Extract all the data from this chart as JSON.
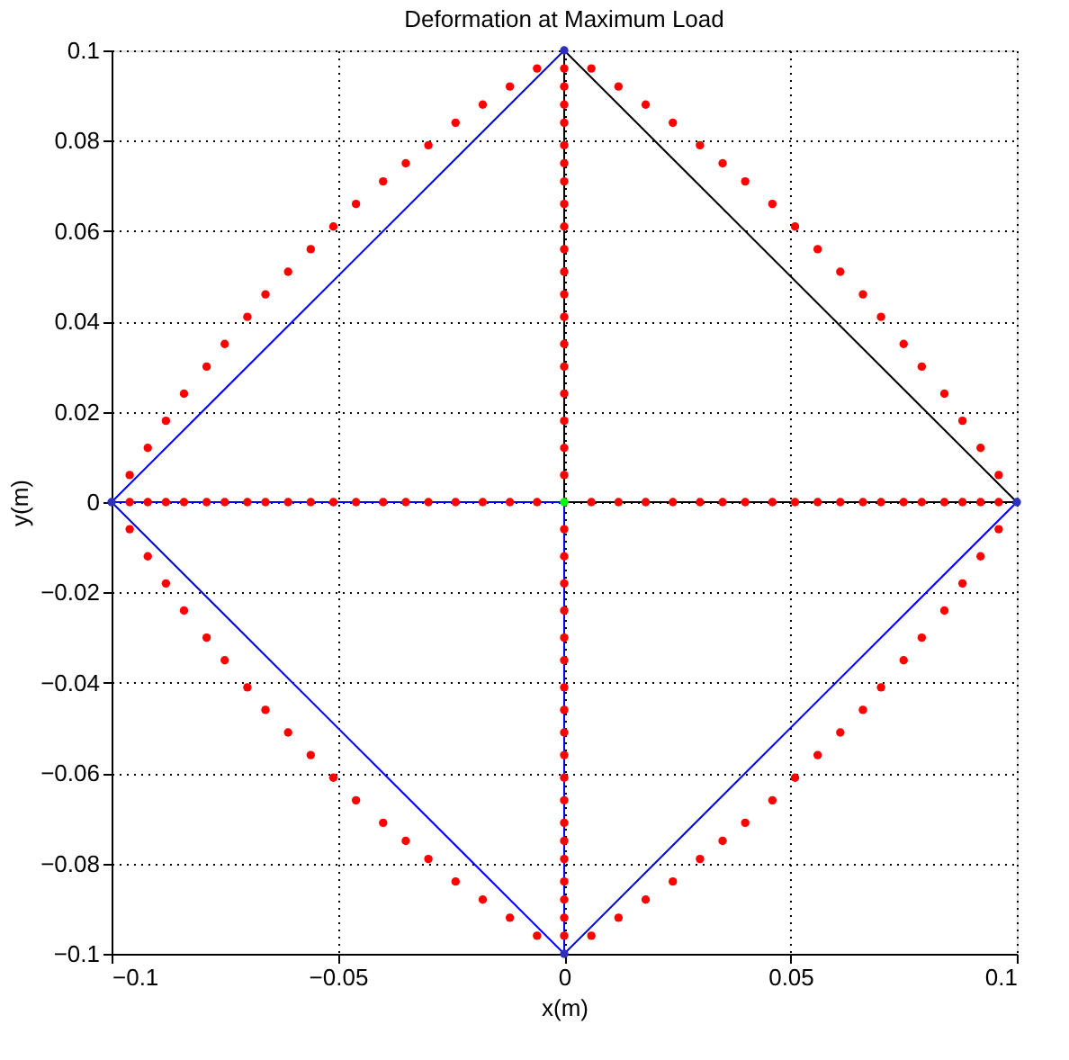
{
  "chart_data": {
    "type": "scatter",
    "title": "Deformation at Maximum Load",
    "xlabel": "x(m)",
    "ylabel": "y(m)",
    "xlim": [
      -0.1,
      0.1
    ],
    "ylim": [
      -0.1,
      0.1
    ],
    "xticks": [
      -0.1,
      -0.05,
      0,
      0.05,
      0.1
    ],
    "yticks": [
      -0.1,
      -0.08,
      -0.06,
      -0.04,
      -0.02,
      0,
      0.02,
      0.04,
      0.06,
      0.08,
      0.1
    ],
    "grid": true,
    "series": [
      {
        "type": "line",
        "color": "#0000ff",
        "x": [
          0.1,
          0,
          -0.1,
          0
        ],
        "values": [
          0,
          -0.1,
          0,
          0.1
        ]
      },
      {
        "type": "line",
        "color": "#000000",
        "x": [
          0,
          0.1
        ],
        "values": [
          0.1,
          0
        ]
      },
      {
        "type": "line",
        "color": "#0000ff",
        "x": [
          -0.1,
          0
        ],
        "values": [
          0,
          0
        ]
      },
      {
        "type": "line",
        "color": "#000000",
        "x": [
          0,
          0.1
        ],
        "values": [
          0,
          0
        ]
      },
      {
        "type": "line",
        "color": "#000000",
        "x": [
          0,
          0
        ],
        "values": [
          0,
          0.1
        ]
      },
      {
        "type": "line",
        "color": "#0000ff",
        "x": [
          0,
          0
        ],
        "values": [
          0,
          -0.1
        ]
      },
      {
        "color": "#ff0000",
        "x": [
          -0.096,
          -0.092,
          -0.088,
          -0.084,
          -0.079,
          -0.075,
          -0.07,
          -0.066,
          -0.061,
          -0.056,
          -0.051,
          -0.046,
          -0.04,
          -0.035,
          -0.03,
          -0.024,
          -0.018,
          -0.012,
          -0.006
        ],
        "values": [
          0.006,
          0.012,
          0.018,
          0.024,
          0.03,
          0.035,
          0.041,
          0.046,
          0.051,
          0.056,
          0.061,
          0.066,
          0.071,
          0.075,
          0.079,
          0.084,
          0.088,
          0.092,
          0.096
        ]
      },
      {
        "color": "#ff0000",
        "x": [
          0.096,
          0.092,
          0.088,
          0.084,
          0.079,
          0.075,
          0.07,
          0.066,
          0.061,
          0.056,
          0.051,
          0.046,
          0.04,
          0.035,
          0.03,
          0.024,
          0.018,
          0.012,
          0.006
        ],
        "values": [
          0.006,
          0.012,
          0.018,
          0.024,
          0.03,
          0.035,
          0.041,
          0.046,
          0.051,
          0.056,
          0.061,
          0.066,
          0.071,
          0.075,
          0.079,
          0.084,
          0.088,
          0.092,
          0.096
        ]
      },
      {
        "color": "#ff0000",
        "x": [
          -0.096,
          -0.092,
          -0.088,
          -0.084,
          -0.079,
          -0.075,
          -0.07,
          -0.066,
          -0.061,
          -0.056,
          -0.051,
          -0.046,
          -0.04,
          -0.035,
          -0.03,
          -0.024,
          -0.018,
          -0.012,
          -0.006
        ],
        "values": [
          -0.006,
          -0.012,
          -0.018,
          -0.024,
          -0.03,
          -0.035,
          -0.041,
          -0.046,
          -0.051,
          -0.056,
          -0.061,
          -0.066,
          -0.071,
          -0.075,
          -0.079,
          -0.084,
          -0.088,
          -0.092,
          -0.096
        ]
      },
      {
        "color": "#ff0000",
        "x": [
          0.096,
          0.092,
          0.088,
          0.084,
          0.079,
          0.075,
          0.07,
          0.066,
          0.061,
          0.056,
          0.051,
          0.046,
          0.04,
          0.035,
          0.03,
          0.024,
          0.018,
          0.012,
          0.006
        ],
        "values": [
          -0.006,
          -0.012,
          -0.018,
          -0.024,
          -0.03,
          -0.035,
          -0.041,
          -0.046,
          -0.051,
          -0.056,
          -0.061,
          -0.066,
          -0.071,
          -0.075,
          -0.079,
          -0.084,
          -0.088,
          -0.092,
          -0.096
        ]
      },
      {
        "color": "#ff0000",
        "x": [
          -0.096,
          -0.092,
          -0.088,
          -0.084,
          -0.079,
          -0.075,
          -0.07,
          -0.066,
          -0.061,
          -0.056,
          -0.051,
          -0.046,
          -0.04,
          -0.035,
          -0.03,
          -0.024,
          -0.018,
          -0.012,
          -0.006,
          0.006,
          0.012,
          0.018,
          0.024,
          0.03,
          0.035,
          0.04,
          0.046,
          0.051,
          0.056,
          0.061,
          0.066,
          0.07,
          0.075,
          0.079,
          0.084,
          0.088,
          0.092,
          0.096
        ],
        "values": [
          0,
          0,
          0,
          0,
          0,
          0,
          0,
          0,
          0,
          0,
          0,
          0,
          0,
          0,
          0,
          0,
          0,
          0,
          0,
          0,
          0,
          0,
          0,
          0,
          0,
          0,
          0,
          0,
          0,
          0,
          0,
          0,
          0,
          0,
          0,
          0,
          0,
          0
        ]
      },
      {
        "color": "#ff0000",
        "x": [
          0,
          0,
          0,
          0,
          0,
          0,
          0,
          0,
          0,
          0,
          0,
          0,
          0,
          0,
          0,
          0,
          0,
          0,
          0,
          0,
          0,
          0,
          0,
          0,
          0,
          0,
          0,
          0,
          0,
          0,
          0,
          0,
          0,
          0,
          0,
          0,
          0,
          0
        ],
        "values": [
          -0.096,
          -0.092,
          -0.088,
          -0.084,
          -0.079,
          -0.075,
          -0.071,
          -0.066,
          -0.061,
          -0.056,
          -0.051,
          -0.046,
          -0.041,
          -0.035,
          -0.03,
          -0.024,
          -0.018,
          -0.012,
          -0.006,
          0.006,
          0.012,
          0.018,
          0.024,
          0.03,
          0.035,
          0.041,
          0.046,
          0.051,
          0.056,
          0.061,
          0.066,
          0.071,
          0.075,
          0.079,
          0.084,
          0.088,
          0.092,
          0.096
        ]
      },
      {
        "color": "#3030c0",
        "x": [
          -0.1,
          0,
          0.1,
          0
        ],
        "values": [
          0,
          0.1,
          0,
          -0.1
        ]
      },
      {
        "color": "#00ff00",
        "x": [
          0
        ],
        "values": [
          0
        ]
      }
    ]
  }
}
